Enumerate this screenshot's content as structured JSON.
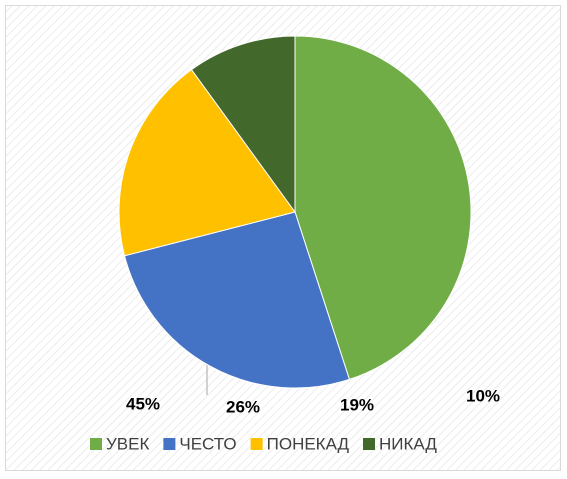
{
  "chart_data": {
    "type": "pie",
    "categories": [
      "УВЕК",
      "ЧЕСТО",
      "ПОНЕКАД",
      "НИКАД"
    ],
    "values": [
      45,
      26,
      19,
      10
    ],
    "value_labels": [
      "45%",
      "26%",
      "19%",
      "10%"
    ],
    "colors": [
      "#70ad47",
      "#4472c4",
      "#ffc000",
      "#43682b"
    ],
    "legend": "bottom"
  }
}
